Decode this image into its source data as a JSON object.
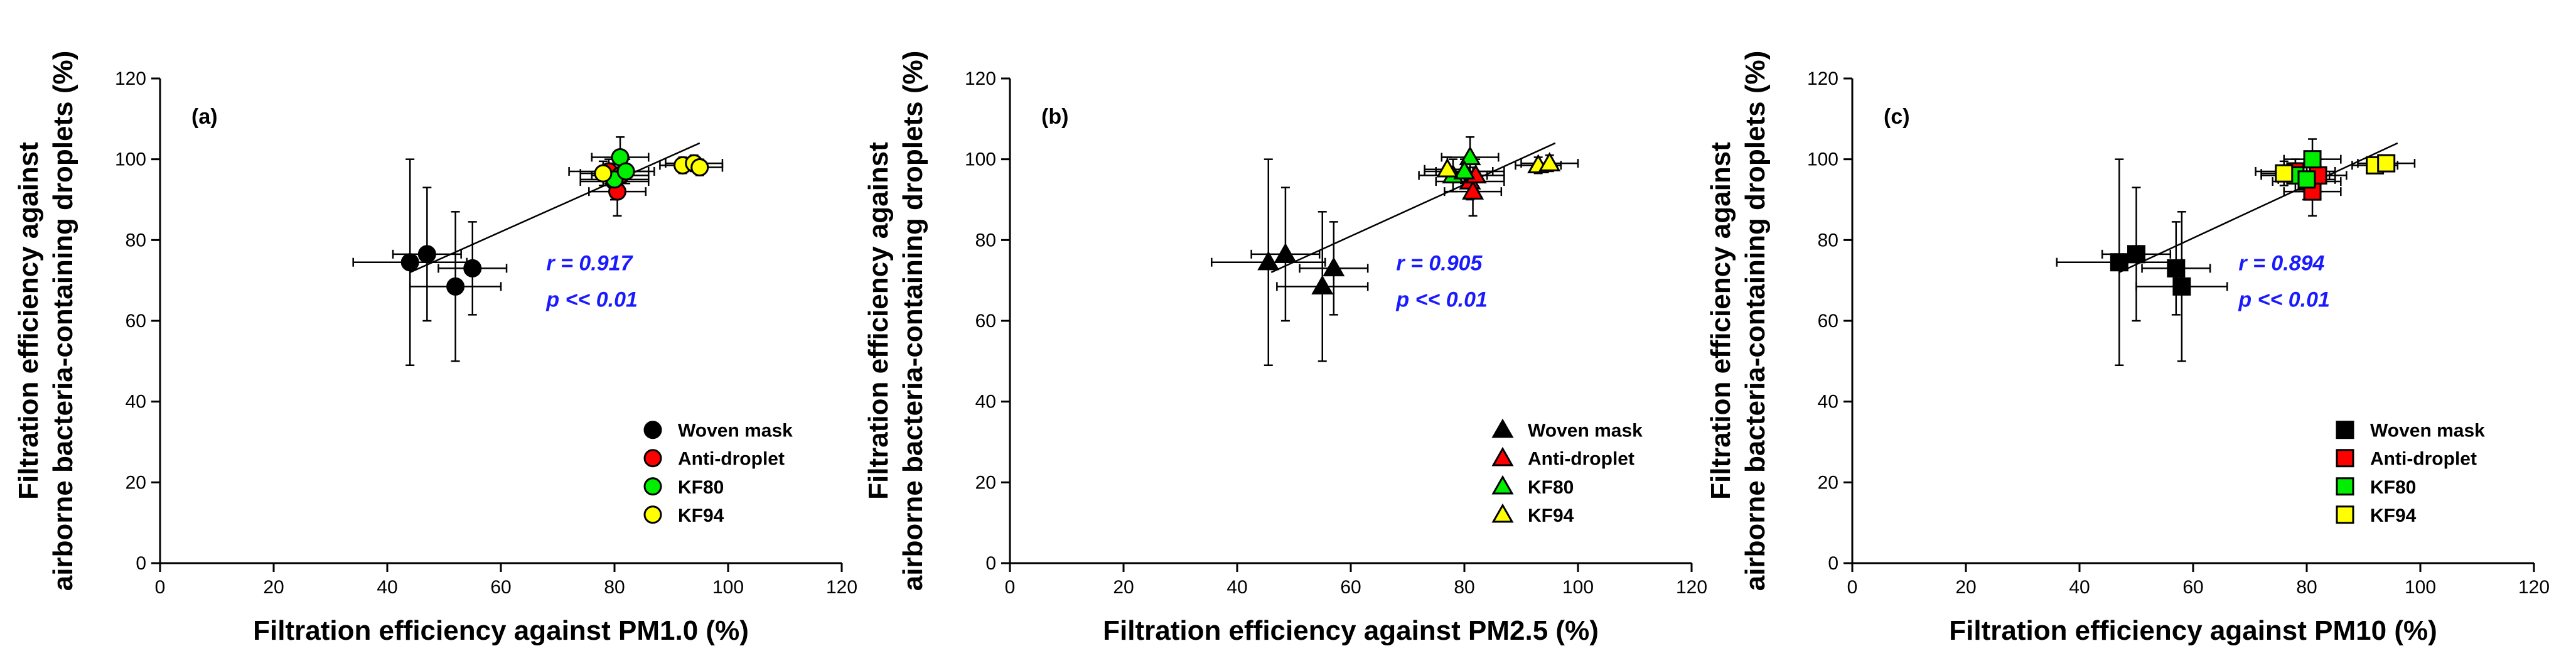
{
  "colors": {
    "axis": "#000000",
    "stat_text": "#1a1aff",
    "fit_line": "#000000",
    "errorbar": "#000000",
    "group_fill": {
      "Woven mask": "#000000",
      "Anti-droplet": "#ff0000",
      "KF80": "#00ee00",
      "KF94": "#ffff00"
    }
  },
  "chart_data": [
    {
      "type": "scatter",
      "panel_label": "(a)",
      "marker": "circle",
      "xlabel": "Filtration efficiency against PM1.0 (%)",
      "ylabel_lines": [
        "Filtration efficiency against",
        "airborne bacteria-containing droplets (%)"
      ],
      "xlim": [
        0,
        120
      ],
      "ylim": [
        0,
        120
      ],
      "xticks": [
        0,
        20,
        40,
        60,
        80,
        100,
        120
      ],
      "yticks": [
        0,
        20,
        40,
        60,
        80,
        100,
        120
      ],
      "stats": [
        "r = 0.917",
        "p << 0.01"
      ],
      "fit_line": {
        "x": [
          44,
          95
        ],
        "y": [
          72,
          104
        ]
      },
      "legend": {
        "position": "bottom-right",
        "entries": [
          "Woven mask",
          "Anti-droplet",
          "KF80",
          "KF94"
        ]
      },
      "series": [
        {
          "name": "Woven mask",
          "points": [
            {
              "x": 44,
              "y": 74.5,
              "xerr": 10,
              "yerr": 25.5
            },
            {
              "x": 47,
              "y": 76.5,
              "xerr": 6,
              "yerr": 16.5
            },
            {
              "x": 52,
              "y": 68.5,
              "xerr": 8,
              "yerr": 18.5
            },
            {
              "x": 55,
              "y": 73,
              "xerr": 6,
              "yerr": 11.5
            }
          ]
        },
        {
          "name": "Anti-droplet",
          "points": [
            {
              "x": 79,
              "y": 97,
              "xerr": 7,
              "yerr": 3
            },
            {
              "x": 80,
              "y": 94.5,
              "xerr": 6,
              "yerr": 4.5
            },
            {
              "x": 80.5,
              "y": 92,
              "xerr": 5,
              "yerr": 6
            },
            {
              "x": 81,
              "y": 96,
              "xerr": 5,
              "yerr": 4
            }
          ]
        },
        {
          "name": "KF80",
          "points": [
            {
              "x": 81,
              "y": 100.5,
              "xerr": 5,
              "yerr": 5
            },
            {
              "x": 80,
              "y": 95,
              "xerr": 6,
              "yerr": 5
            },
            {
              "x": 82,
              "y": 97,
              "xerr": 5,
              "yerr": 3
            }
          ]
        },
        {
          "name": "KF94",
          "points": [
            {
              "x": 78,
              "y": 96.5,
              "xerr": 4,
              "yerr": 3
            },
            {
              "x": 92,
              "y": 98.5,
              "xerr": 4,
              "yerr": 2
            },
            {
              "x": 94,
              "y": 99,
              "xerr": 5,
              "yerr": 2
            },
            {
              "x": 95,
              "y": 98,
              "xerr": 4,
              "yerr": 2
            }
          ]
        }
      ]
    },
    {
      "type": "scatter",
      "panel_label": "(b)",
      "marker": "triangle",
      "xlabel": "Filtration efficiency against PM2.5 (%)",
      "ylabel_lines": [
        "Filtration efficiency against",
        "airborne bacteria-containing droplets (%)"
      ],
      "xlim": [
        0,
        120
      ],
      "ylim": [
        0,
        120
      ],
      "xticks": [
        0,
        20,
        40,
        60,
        80,
        100,
        120
      ],
      "yticks": [
        0,
        20,
        40,
        60,
        80,
        100,
        120
      ],
      "stats": [
        "r = 0.905",
        "p << 0.01"
      ],
      "fit_line": {
        "x": [
          46,
          96
        ],
        "y": [
          72,
          104
        ]
      },
      "legend": {
        "position": "bottom-right",
        "entries": [
          "Woven mask",
          "Anti-droplet",
          "KF80",
          "KF94"
        ]
      },
      "series": [
        {
          "name": "Woven mask",
          "points": [
            {
              "x": 45.5,
              "y": 74.5,
              "xerr": 10,
              "yerr": 25.5
            },
            {
              "x": 48.5,
              "y": 76.5,
              "xerr": 6,
              "yerr": 16.5
            },
            {
              "x": 55,
              "y": 68.5,
              "xerr": 8,
              "yerr": 18.5
            },
            {
              "x": 57,
              "y": 73,
              "xerr": 6,
              "yerr": 11.5
            }
          ]
        },
        {
          "name": "Anti-droplet",
          "points": [
            {
              "x": 80,
              "y": 97,
              "xerr": 7,
              "yerr": 3
            },
            {
              "x": 81,
              "y": 94.5,
              "xerr": 6,
              "yerr": 4.5
            },
            {
              "x": 81.5,
              "y": 92,
              "xerr": 5,
              "yerr": 6
            },
            {
              "x": 82,
              "y": 96,
              "xerr": 5,
              "yerr": 4
            }
          ]
        },
        {
          "name": "KF80",
          "points": [
            {
              "x": 81,
              "y": 100.5,
              "xerr": 5,
              "yerr": 5
            },
            {
              "x": 78,
              "y": 96,
              "xerr": 6,
              "yerr": 4
            },
            {
              "x": 80,
              "y": 97,
              "xerr": 5,
              "yerr": 3
            }
          ]
        },
        {
          "name": "KF94",
          "points": [
            {
              "x": 77,
              "y": 97.5,
              "xerr": 4,
              "yerr": 3
            },
            {
              "x": 93,
              "y": 98.5,
              "xerr": 4,
              "yerr": 2
            },
            {
              "x": 95,
              "y": 99,
              "xerr": 5,
              "yerr": 2
            }
          ]
        }
      ]
    },
    {
      "type": "scatter",
      "panel_label": "(c)",
      "marker": "square",
      "xlabel": "Filtration efficiency against PM10 (%)",
      "ylabel_lines": [
        "Filtration efficiency against",
        "airborne bacteria-containing droplets (%)"
      ],
      "xlim": [
        0,
        120
      ],
      "ylim": [
        0,
        120
      ],
      "xticks": [
        0,
        20,
        40,
        60,
        80,
        100,
        120
      ],
      "yticks": [
        0,
        20,
        40,
        60,
        80,
        100,
        120
      ],
      "stats": [
        "r = 0.894",
        "p << 0.01"
      ],
      "fit_line": {
        "x": [
          47,
          96
        ],
        "y": [
          72,
          104
        ]
      },
      "legend": {
        "position": "bottom-right",
        "entries": [
          "Woven mask",
          "Anti-droplet",
          "KF80",
          "KF94"
        ]
      },
      "series": [
        {
          "name": "Woven mask",
          "points": [
            {
              "x": 47,
              "y": 74.5,
              "xerr": 11,
              "yerr": 25.5
            },
            {
              "x": 50,
              "y": 76.5,
              "xerr": 6,
              "yerr": 16.5
            },
            {
              "x": 57,
              "y": 73,
              "xerr": 6,
              "yerr": 11.5
            },
            {
              "x": 58,
              "y": 68.5,
              "xerr": 8,
              "yerr": 18.5
            }
          ]
        },
        {
          "name": "Anti-droplet",
          "points": [
            {
              "x": 78,
              "y": 97,
              "xerr": 7,
              "yerr": 3
            },
            {
              "x": 80,
              "y": 94.5,
              "xerr": 6,
              "yerr": 4.5
            },
            {
              "x": 81,
              "y": 92,
              "xerr": 5,
              "yerr": 6
            },
            {
              "x": 82,
              "y": 96,
              "xerr": 5,
              "yerr": 4
            }
          ]
        },
        {
          "name": "KF80",
          "points": [
            {
              "x": 81,
              "y": 100,
              "xerr": 5,
              "yerr": 5
            },
            {
              "x": 78,
              "y": 96,
              "xerr": 6,
              "yerr": 4
            },
            {
              "x": 80,
              "y": 95,
              "xerr": 5,
              "yerr": 3
            }
          ]
        },
        {
          "name": "KF94",
          "points": [
            {
              "x": 76,
              "y": 96.5,
              "xerr": 4,
              "yerr": 3
            },
            {
              "x": 92,
              "y": 98.5,
              "xerr": 4,
              "yerr": 2
            },
            {
              "x": 94,
              "y": 99,
              "xerr": 5,
              "yerr": 2
            }
          ]
        }
      ]
    }
  ]
}
